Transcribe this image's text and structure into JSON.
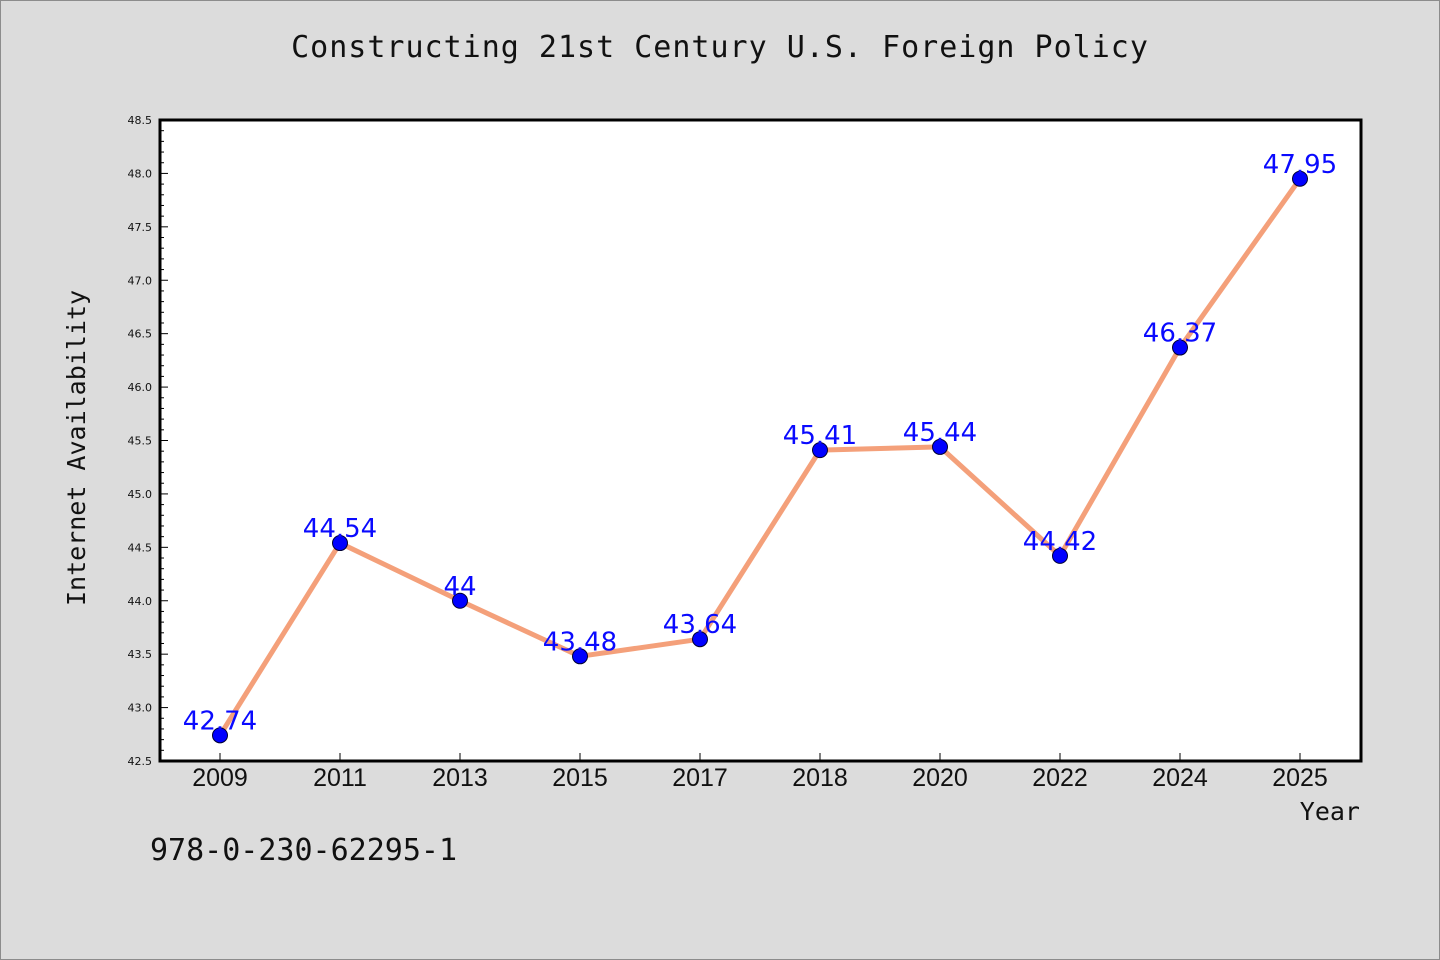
{
  "chart_data": {
    "type": "line",
    "title": "Constructing 21st Century U.S. Foreign Policy",
    "xlabel": "Year",
    "ylabel": "Internet Availability",
    "categories": [
      "2009",
      "2011",
      "2013",
      "2015",
      "2017",
      "2018",
      "2020",
      "2022",
      "2024",
      "2025"
    ],
    "series": [
      {
        "values": [
          42.74,
          44.54,
          44,
          43.48,
          43.64,
          45.41,
          45.44,
          44.42,
          46.37,
          47.95
        ],
        "data_labels": [
          "42.74",
          "44.54",
          "44",
          "43.48",
          "43.64",
          "45.41",
          "45.44",
          "44.42",
          "46.37",
          "47.95"
        ],
        "line_color": "#f4a07a",
        "marker_color": "#0000ff"
      }
    ],
    "ylim": [
      42.5,
      48.5
    ],
    "yticks": [
      "42.5",
      "43.0",
      "43.5",
      "44.0",
      "44.5",
      "45.0",
      "45.5",
      "46.0",
      "46.5",
      "47.0",
      "47.5",
      "48.0",
      "48.5"
    ],
    "grid": false,
    "legend": "none"
  },
  "footer": {
    "text": "978-0-230-62295-1"
  },
  "colors": {
    "background": "#dcdcdc",
    "plot_background": "#ffffff",
    "line": "#f4a07a",
    "marker": "#0000ff",
    "data_label": "#0a0aff"
  }
}
